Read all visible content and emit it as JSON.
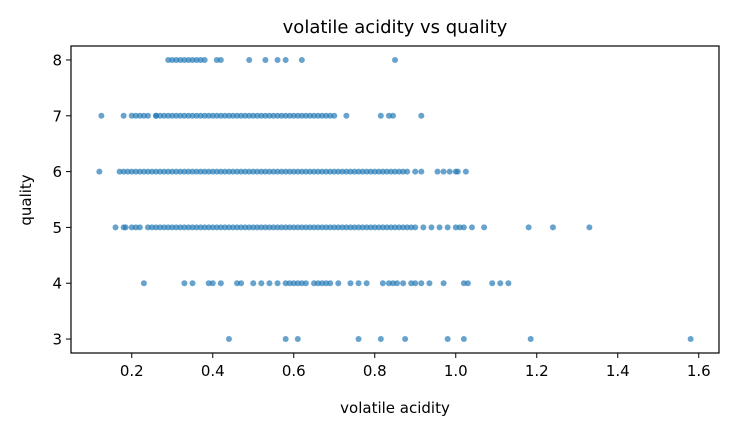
{
  "chart_data": {
    "type": "scatter",
    "title": "volatile acidity vs quality",
    "xlabel": "volatile acidity",
    "ylabel": "quality",
    "xlim": [
      0.05,
      1.65
    ],
    "ylim": [
      2.75,
      8.25
    ],
    "xticks": [
      0.2,
      0.4,
      0.6,
      0.8,
      1.0,
      1.2,
      1.4,
      1.6
    ],
    "xtick_labels": [
      "0.2",
      "0.4",
      "0.6",
      "0.8",
      "1.0",
      "1.2",
      "1.4",
      "1.6"
    ],
    "yticks": [
      3,
      4,
      5,
      6,
      7,
      8
    ],
    "ytick_labels": [
      "3",
      "4",
      "5",
      "6",
      "7",
      "8"
    ],
    "grid": false,
    "point_color": "#1f77b4",
    "series": [
      {
        "x": [
          0.44,
          0.58,
          0.61,
          0.76,
          0.815,
          0.875,
          0.98,
          1.02,
          1.185,
          1.58,
          0.23,
          0.33,
          0.35,
          0.39,
          0.4,
          0.42,
          0.46,
          0.47,
          0.5,
          0.52,
          0.54,
          0.56,
          0.58,
          0.59,
          0.6,
          0.61,
          0.62,
          0.63,
          0.65,
          0.66,
          0.67,
          0.68,
          0.69,
          0.71,
          0.74,
          0.76,
          0.78,
          0.82,
          0.835,
          0.845,
          0.855,
          0.87,
          0.89,
          0.9,
          0.915,
          0.935,
          0.97,
          1.02,
          1.03,
          1.09,
          1.11,
          1.13,
          0.18,
          0.185,
          0.2,
          0.21,
          0.22,
          0.24,
          0.25,
          0.26,
          0.27,
          0.28,
          0.29,
          0.3,
          0.31,
          0.32,
          0.33,
          0.34,
          0.35,
          0.36,
          0.37,
          0.38,
          0.39,
          0.4,
          0.41,
          0.42,
          0.43,
          0.44,
          0.45,
          0.46,
          0.47,
          0.48,
          0.49,
          0.5,
          0.51,
          0.52,
          0.53,
          0.54,
          0.55,
          0.56,
          0.57,
          0.58,
          0.59,
          0.6,
          0.61,
          0.62,
          0.63,
          0.64,
          0.65,
          0.66,
          0.67,
          0.68,
          0.69,
          0.7,
          0.71,
          0.72,
          0.73,
          0.74,
          0.75,
          0.76,
          0.77,
          0.78,
          0.79,
          0.8,
          0.81,
          0.82,
          0.83,
          0.84,
          0.85,
          0.86,
          0.87,
          0.88,
          0.89,
          0.9,
          0.92,
          0.94,
          0.96,
          0.98,
          1.0,
          1.01,
          1.02,
          1.04,
          1.07,
          1.18,
          1.24,
          1.33,
          0.16,
          0.17,
          0.18,
          0.19,
          0.2,
          0.21,
          0.22,
          0.23,
          0.24,
          0.25,
          0.26,
          0.27,
          0.28,
          0.29,
          0.3,
          0.31,
          0.32,
          0.33,
          0.34,
          0.35,
          0.36,
          0.37,
          0.38,
          0.39,
          0.4,
          0.41,
          0.42,
          0.43,
          0.44,
          0.45,
          0.46,
          0.47,
          0.48,
          0.49,
          0.5,
          0.51,
          0.52,
          0.53,
          0.54,
          0.55,
          0.56,
          0.57,
          0.58,
          0.59,
          0.6,
          0.61,
          0.62,
          0.63,
          0.64,
          0.65,
          0.66,
          0.67,
          0.68,
          0.69,
          0.7,
          0.71,
          0.72,
          0.73,
          0.74,
          0.75,
          0.76,
          0.77,
          0.78,
          0.79,
          0.8,
          0.81,
          0.82,
          0.83,
          0.84,
          0.85,
          0.86,
          0.87,
          0.88,
          0.9,
          0.915,
          0.955,
          0.97,
          0.985,
          1.0,
          1.005,
          1.025,
          0.12,
          0.125,
          0.18,
          0.2,
          0.21,
          0.22,
          0.23,
          0.24,
          0.26,
          0.27,
          0.28,
          0.29,
          0.3,
          0.31,
          0.32,
          0.33,
          0.34,
          0.35,
          0.36,
          0.37,
          0.38,
          0.39,
          0.4,
          0.41,
          0.42,
          0.43,
          0.44,
          0.45,
          0.46,
          0.47,
          0.48,
          0.49,
          0.5,
          0.51,
          0.52,
          0.53,
          0.54,
          0.55,
          0.56,
          0.57,
          0.58,
          0.59,
          0.6,
          0.61,
          0.62,
          0.63,
          0.64,
          0.65,
          0.66,
          0.67,
          0.68,
          0.69,
          0.7,
          0.73,
          0.815,
          0.835,
          0.845,
          0.915,
          0.26,
          0.29,
          0.3,
          0.31,
          0.32,
          0.33,
          0.34,
          0.35,
          0.36,
          0.37,
          0.38,
          0.41,
          0.42,
          0.49,
          0.53,
          0.56,
          0.58,
          0.62,
          0.85
        ]
      }
    ],
    "y": [
      3,
      3,
      3,
      3,
      3,
      3,
      3,
      3,
      3,
      3,
      4,
      4,
      4,
      4,
      4,
      4,
      4,
      4,
      4,
      4,
      4,
      4,
      4,
      4,
      4,
      4,
      4,
      4,
      4,
      4,
      4,
      4,
      4,
      4,
      4,
      4,
      4,
      4,
      4,
      4,
      4,
      4,
      4,
      4,
      4,
      4,
      4,
      4,
      4,
      4,
      4,
      4,
      5,
      5,
      5,
      5,
      5,
      5,
      5,
      5,
      5,
      5,
      5,
      5,
      5,
      5,
      5,
      5,
      5,
      5,
      5,
      5,
      5,
      5,
      5,
      5,
      5,
      5,
      5,
      5,
      5,
      5,
      5,
      5,
      5,
      5,
      5,
      5,
      5,
      5,
      5,
      5,
      5,
      5,
      5,
      5,
      5,
      5,
      5,
      5,
      5,
      5,
      5,
      5,
      5,
      5,
      5,
      5,
      5,
      5,
      5,
      5,
      5,
      5,
      5,
      5,
      5,
      5,
      5,
      5,
      5,
      5,
      5,
      5,
      5,
      5,
      5,
      5,
      5,
      5,
      5,
      5,
      5,
      5,
      5,
      5,
      5,
      6,
      6,
      6,
      6,
      6,
      6,
      6,
      6,
      6,
      6,
      6,
      6,
      6,
      6,
      6,
      6,
      6,
      6,
      6,
      6,
      6,
      6,
      6,
      6,
      6,
      6,
      6,
      6,
      6,
      6,
      6,
      6,
      6,
      6,
      6,
      6,
      6,
      6,
      6,
      6,
      6,
      6,
      6,
      6,
      6,
      6,
      6,
      6,
      6,
      6,
      6,
      6,
      6,
      6,
      6,
      6,
      6,
      6,
      6,
      6,
      6,
      6,
      6,
      6,
      6,
      6,
      6,
      6,
      6,
      6,
      6,
      6,
      6,
      6,
      6,
      6,
      6,
      6,
      6,
      6,
      6,
      7,
      7,
      7,
      7,
      7,
      7,
      7,
      7,
      7,
      7,
      7,
      7,
      7,
      7,
      7,
      7,
      7,
      7,
      7,
      7,
      7,
      7,
      7,
      7,
      7,
      7,
      7,
      7,
      7,
      7,
      7,
      7,
      7,
      7,
      7,
      7,
      7,
      7,
      7,
      7,
      7,
      7,
      7,
      7,
      7,
      7,
      7,
      7,
      7,
      7,
      7,
      7,
      7,
      7,
      7,
      7,
      7,
      7,
      8,
      8,
      8,
      8,
      8,
      8,
      8,
      8,
      8,
      8,
      8,
      8,
      8,
      8,
      8,
      8,
      8,
      8,
      8
    ]
  }
}
